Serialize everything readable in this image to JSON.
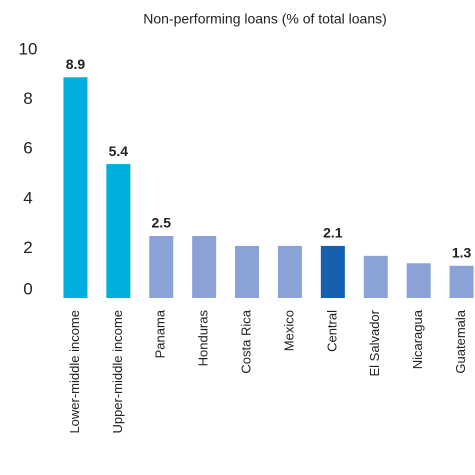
{
  "chart_data": {
    "type": "bar",
    "title": "Non-performing loans (% of total loans)",
    "categories": [
      "Lower-middle income",
      "Upper-middle income",
      "Panama",
      "Honduras",
      "Costa Rica",
      "Mexico",
      "Central",
      "El Salvador",
      "Nicaragua",
      "Guatemala"
    ],
    "values": [
      8.9,
      5.4,
      2.5,
      2.5,
      2.1,
      2.1,
      2.1,
      1.7,
      1.4,
      1.3
    ],
    "value_labels": [
      "8.9",
      "5.4",
      "2.5",
      null,
      null,
      null,
      "2.1",
      null,
      null,
      "1.3"
    ],
    "colors": [
      "#00aee0",
      "#00aee0",
      "#8ba2d6",
      "#8ba2d6",
      "#8ba2d6",
      "#8ba2d6",
      "#1560b0",
      "#8ba2d6",
      "#8ba2d6",
      "#8ba2d6"
    ],
    "ylim": [
      0,
      10
    ],
    "yticks": [
      0,
      2,
      4,
      6,
      8,
      10
    ],
    "grid": false
  }
}
